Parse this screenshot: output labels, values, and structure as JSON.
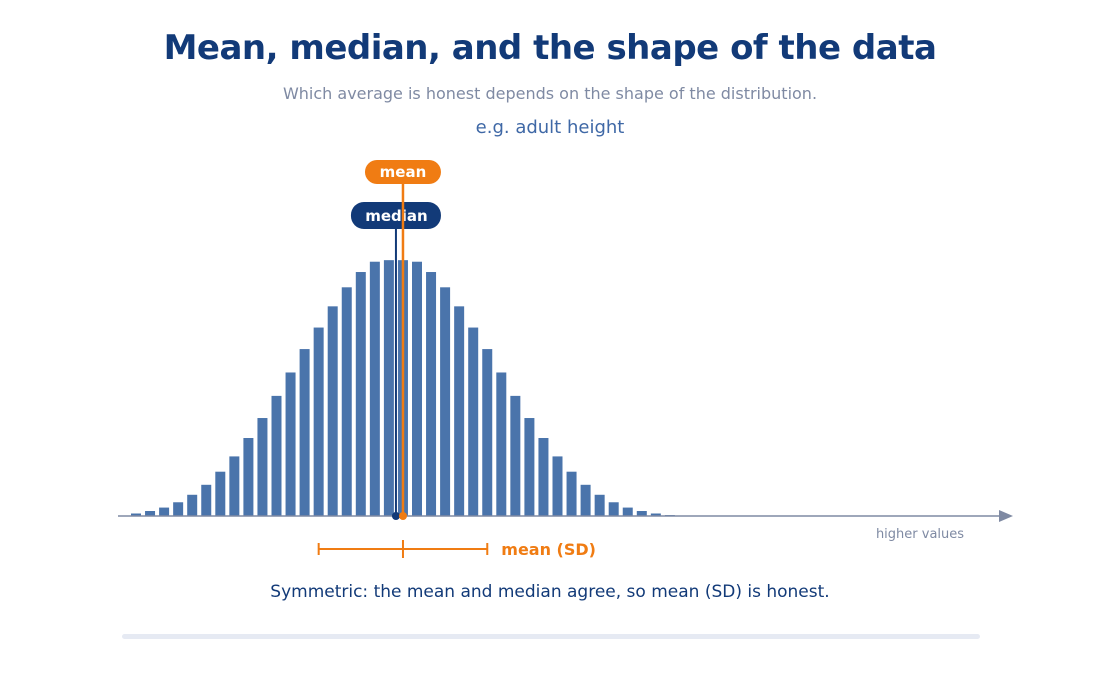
{
  "header": {
    "title": "Mean, median, and the shape of the data",
    "subtitle": "Which average is honest depends on the shape of the distribution.",
    "example": "e.g.  adult height"
  },
  "caption": "Symmetric: the mean and median agree, so mean (SD) is honest.",
  "colors": {
    "bar": "#4a74ab",
    "mean": "#f07c13",
    "median": "#123a78",
    "axis": "#7f8aa3"
  },
  "chart_data": {
    "type": "bar",
    "distribution": "symmetric",
    "bins": 39,
    "values": [
      0.8,
      1.6,
      2.7,
      4.4,
      6.8,
      10.0,
      14.2,
      19.1,
      25.0,
      31.4,
      38.5,
      46.0,
      53.5,
      60.4,
      67.2,
      73.3,
      78.2,
      81.5,
      82.0,
      82.0,
      81.5,
      78.2,
      73.3,
      67.2,
      60.4,
      53.5,
      46.0,
      38.5,
      31.4,
      25.0,
      19.1,
      14.2,
      10.0,
      6.8,
      4.4,
      2.7,
      1.6,
      0.8,
      0.3
    ],
    "mean_bin": 19.5,
    "median_bin": 19.0,
    "sd_bins": 6.0,
    "mean_label": "mean",
    "median_label": "median",
    "sd_label": "mean (SD)",
    "xlabel": "higher values",
    "grid": false
  }
}
